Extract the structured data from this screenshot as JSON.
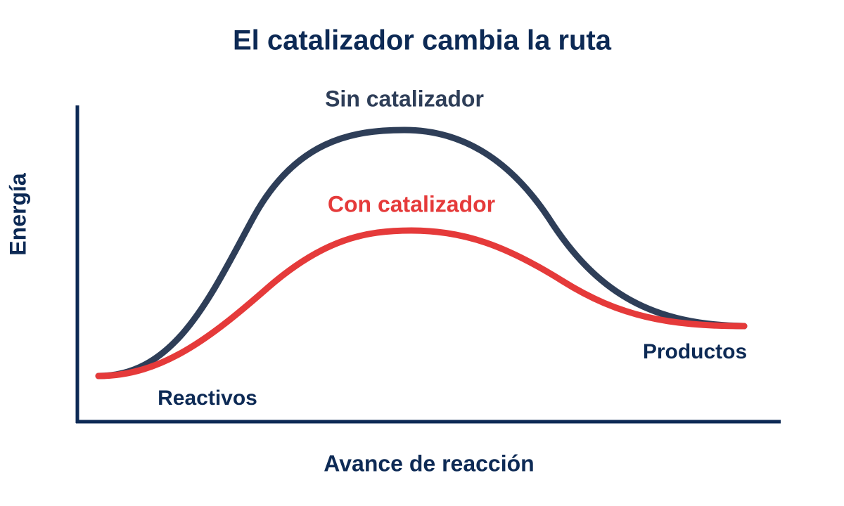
{
  "title": "El catalizador cambia la ruta",
  "y_axis_label": "Energía",
  "x_axis_label": "Avance de reacción",
  "start_label": "Reactivos",
  "end_label": "Productos",
  "curves": [
    {
      "label": "Sin catalizador",
      "color": "#2e3e58"
    },
    {
      "label": "Con catalizador",
      "color": "#e53a3a"
    }
  ]
}
